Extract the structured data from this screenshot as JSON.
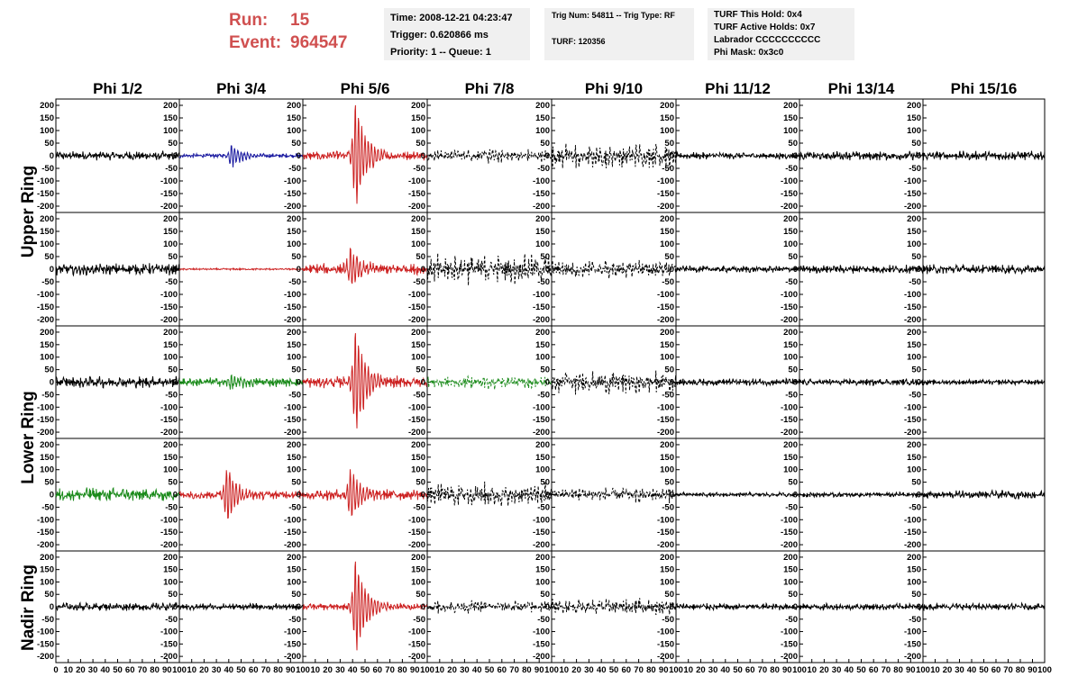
{
  "header": {
    "run_label": "Run:",
    "run_value": "15",
    "event_label": "Event:",
    "event_value": "964547"
  },
  "info": {
    "time": "Time: 2008-12-21 04:23:47",
    "trigger": "Trigger: 0.620866 ms",
    "priority": "Priority: 1 -- Queue: 1",
    "trig_num": "Trig Num: 54811 -- Trig Type: RF",
    "turf": "TURF: 120356",
    "turf_hold": "TURF This Hold: 0x4",
    "turf_active": "TURF Active Holds: 0x7",
    "labrador": "Labrador CCCCCCCCCC",
    "phi_mask": "Phi Mask: 0x3c0"
  },
  "chart_data": {
    "type": "line",
    "columns": [
      "Phi 1/2",
      "Phi 3/4",
      "Phi 5/6",
      "Phi 7/8",
      "Phi 9/10",
      "Phi 11/12",
      "Phi 13/14",
      "Phi 15/16"
    ],
    "ring_labels": [
      "Upper Ring",
      "Lower Ring",
      "Nadir Ring"
    ],
    "rows": 5,
    "xlim": [
      0,
      100
    ],
    "ylim": [
      -225,
      225
    ],
    "yticks": [
      -200,
      -150,
      -100,
      -50,
      0,
      50,
      100,
      150,
      200
    ],
    "xticks": [
      0,
      10,
      20,
      30,
      40,
      50,
      60,
      70,
      80,
      90,
      100
    ],
    "colors": {
      "black": "#000000",
      "blue": "#1a1aa0",
      "red": "#cc2020",
      "green": "#1a8a1a"
    },
    "traces": [
      [
        {
          "color": "black",
          "dashed": false,
          "amp": 20,
          "peak": 0,
          "peak_at": 0
        },
        {
          "color": "blue",
          "dashed": false,
          "amp": 10,
          "peak": 45,
          "peak_at": 42
        },
        {
          "color": "red",
          "dashed": false,
          "amp": 20,
          "peak": 225,
          "peak_at": 42
        },
        {
          "color": "black",
          "dashed": true,
          "amp": 30,
          "peak": 25,
          "peak_at": 50
        },
        {
          "color": "black",
          "dashed": true,
          "amp": 60,
          "peak": 10,
          "peak_at": 50
        },
        {
          "color": "black",
          "dashed": false,
          "amp": 15,
          "peak": 0,
          "peak_at": 0
        },
        {
          "color": "black",
          "dashed": false,
          "amp": 20,
          "peak": 0,
          "peak_at": 0
        },
        {
          "color": "black",
          "dashed": false,
          "amp": 20,
          "peak": 0,
          "peak_at": 0
        }
      ],
      [
        {
          "color": "black",
          "dashed": false,
          "amp": 25,
          "peak": 0,
          "peak_at": 0
        },
        {
          "color": "red",
          "dashed": false,
          "amp": 4,
          "peak": 0,
          "peak_at": 0
        },
        {
          "color": "red",
          "dashed": false,
          "amp": 25,
          "peak": 80,
          "peak_at": 38
        },
        {
          "color": "black",
          "dashed": true,
          "amp": 70,
          "peak": 10,
          "peak_at": 50
        },
        {
          "color": "black",
          "dashed": true,
          "amp": 45,
          "peak": 5,
          "peak_at": 50
        },
        {
          "color": "black",
          "dashed": false,
          "amp": 15,
          "peak": 0,
          "peak_at": 0
        },
        {
          "color": "black",
          "dashed": false,
          "amp": 18,
          "peak": 0,
          "peak_at": 0
        },
        {
          "color": "black",
          "dashed": false,
          "amp": 20,
          "peak": 0,
          "peak_at": 0
        }
      ],
      [
        {
          "color": "black",
          "dashed": false,
          "amp": 25,
          "peak": 0,
          "peak_at": 0
        },
        {
          "color": "green",
          "dashed": false,
          "amp": 20,
          "peak": 30,
          "peak_at": 42
        },
        {
          "color": "red",
          "dashed": false,
          "amp": 25,
          "peak": 220,
          "peak_at": 42
        },
        {
          "color": "green",
          "dashed": true,
          "amp": 30,
          "peak": 15,
          "peak_at": 45
        },
        {
          "color": "black",
          "dashed": true,
          "amp": 55,
          "peak": 10,
          "peak_at": 50
        },
        {
          "color": "black",
          "dashed": false,
          "amp": 15,
          "peak": 0,
          "peak_at": 0
        },
        {
          "color": "black",
          "dashed": false,
          "amp": 15,
          "peak": 0,
          "peak_at": 0
        },
        {
          "color": "black",
          "dashed": false,
          "amp": 12,
          "peak": 0,
          "peak_at": 0
        }
      ],
      [
        {
          "color": "green",
          "dashed": false,
          "amp": 30,
          "peak": 0,
          "peak_at": 0
        },
        {
          "color": "red",
          "dashed": false,
          "amp": 20,
          "peak": 120,
          "peak_at": 38
        },
        {
          "color": "red",
          "dashed": false,
          "amp": 25,
          "peak": 110,
          "peak_at": 38
        },
        {
          "color": "black",
          "dashed": true,
          "amp": 60,
          "peak": 5,
          "peak_at": 50
        },
        {
          "color": "black",
          "dashed": true,
          "amp": 35,
          "peak": 5,
          "peak_at": 40
        },
        {
          "color": "black",
          "dashed": false,
          "amp": 10,
          "peak": 0,
          "peak_at": 0
        },
        {
          "color": "black",
          "dashed": false,
          "amp": 12,
          "peak": 0,
          "peak_at": 0
        },
        {
          "color": "black",
          "dashed": false,
          "amp": 18,
          "peak": 0,
          "peak_at": 0
        }
      ],
      [
        {
          "color": "black",
          "dashed": false,
          "amp": 18,
          "peak": 0,
          "peak_at": 0
        },
        {
          "color": "black",
          "dashed": false,
          "amp": 15,
          "peak": 0,
          "peak_at": 0
        },
        {
          "color": "red",
          "dashed": false,
          "amp": 15,
          "peak": 200,
          "peak_at": 42
        },
        {
          "color": "black",
          "dashed": true,
          "amp": 30,
          "peak": 10,
          "peak_at": 50
        },
        {
          "color": "black",
          "dashed": true,
          "amp": 40,
          "peak": 5,
          "peak_at": 50
        },
        {
          "color": "black",
          "dashed": false,
          "amp": 15,
          "peak": 0,
          "peak_at": 0
        },
        {
          "color": "black",
          "dashed": false,
          "amp": 15,
          "peak": 0,
          "peak_at": 0
        },
        {
          "color": "black",
          "dashed": false,
          "amp": 15,
          "peak": 0,
          "peak_at": 0
        }
      ]
    ]
  }
}
